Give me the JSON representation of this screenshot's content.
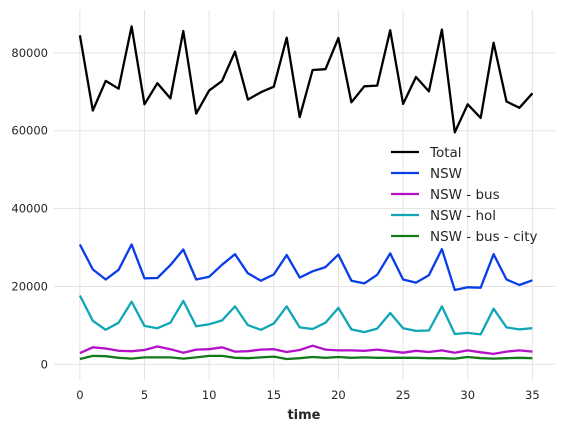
{
  "chart_data": {
    "type": "line",
    "title": "",
    "xlabel": "time",
    "ylabel": "",
    "xlim": [
      -2,
      36.75
    ],
    "ylim": [
      -4000,
      91000
    ],
    "xticks": [
      0,
      5,
      10,
      15,
      20,
      25,
      30,
      35
    ],
    "yticks": [
      0,
      20000,
      40000,
      60000,
      80000
    ],
    "grid": true,
    "legend_position": "center-right",
    "x": [
      0,
      1,
      2,
      3,
      4,
      5,
      6,
      7,
      8,
      9,
      10,
      11,
      12,
      13,
      14,
      15,
      16,
      17,
      18,
      19,
      20,
      21,
      22,
      23,
      24,
      25,
      26,
      27,
      28,
      29,
      30,
      31,
      32,
      33,
      34,
      35
    ],
    "series": [
      {
        "name": "Total",
        "color": "#000000",
        "values": [
          84500,
          65200,
          72800,
          70800,
          86800,
          66800,
          72200,
          68300,
          85600,
          64400,
          70300,
          72800,
          80300,
          68000,
          69900,
          71300,
          83900,
          63500,
          75600,
          75800,
          83800,
          67300,
          71400,
          71600,
          85800,
          66900,
          73800,
          70100,
          86000,
          59600,
          66800,
          63300,
          82600,
          67500,
          65900,
          69600
        ]
      },
      {
        "name": "NSW",
        "color": "#0a3ce8",
        "values": [
          30800,
          24400,
          21800,
          24300,
          30800,
          22100,
          22200,
          25500,
          29500,
          21800,
          22500,
          25600,
          28300,
          23400,
          21500,
          23100,
          28100,
          22300,
          23900,
          25000,
          28200,
          21500,
          20800,
          23000,
          28500,
          21800,
          21000,
          22900,
          29600,
          19100,
          19800,
          19700,
          28300,
          21800,
          20400,
          21600
        ]
      },
      {
        "name": "NSW - bus",
        "color": "#b310c7",
        "values": [
          2900,
          4400,
          4100,
          3500,
          3400,
          3700,
          4600,
          3900,
          3000,
          3800,
          3900,
          4400,
          3300,
          3400,
          3800,
          3900,
          3200,
          3700,
          4800,
          3800,
          3600,
          3600,
          3500,
          3800,
          3400,
          3000,
          3500,
          3200,
          3600,
          3000,
          3600,
          3100,
          2700,
          3300,
          3600,
          3300
        ]
      },
      {
        "name": "NSW - hol",
        "color": "#0fa7b5",
        "values": [
          17700,
          11200,
          8900,
          10700,
          16100,
          9900,
          9300,
          10700,
          16300,
          9800,
          10300,
          11300,
          14900,
          10100,
          8900,
          10500,
          14900,
          9500,
          9100,
          10700,
          14500,
          9000,
          8300,
          9200,
          13200,
          9300,
          8600,
          8700,
          14900,
          7800,
          8100,
          7700,
          14300,
          9500,
          9000,
          9300
        ]
      },
      {
        "name": "NSW - bus - city",
        "color": "#127a18",
        "values": [
          1400,
          2200,
          2100,
          1700,
          1500,
          1800,
          1800,
          1800,
          1500,
          1800,
          2200,
          2200,
          1700,
          1600,
          1800,
          2000,
          1400,
          1600,
          1900,
          1700,
          1900,
          1700,
          1800,
          1700,
          1700,
          1700,
          1700,
          1600,
          1600,
          1500,
          1900,
          1600,
          1500,
          1600,
          1700,
          1600
        ]
      }
    ]
  }
}
